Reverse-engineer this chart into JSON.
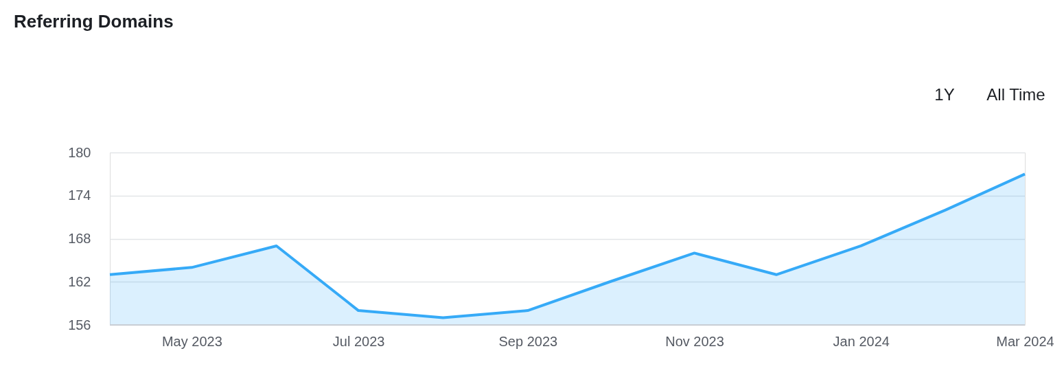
{
  "chart_data": {
    "type": "area",
    "title": "Referring Domains",
    "annotations": [
      "1Y",
      "All Time"
    ],
    "x": [
      "2023-04",
      "2023-05",
      "2023-06",
      "2023-07",
      "2023-08",
      "2023-09",
      "2023-10",
      "2023-11",
      "2023-12",
      "2024-01",
      "2024-02",
      "2024-03"
    ],
    "series": [
      {
        "color": "#36aaf7",
        "values": [
          163,
          164,
          167,
          158,
          157,
          158,
          162,
          166,
          163,
          167,
          172,
          177
        ]
      }
    ],
    "xlim": [
      "2023-04",
      "2024-03"
    ],
    "xticks": [
      {
        "value": "2023-05",
        "label": "May 2023"
      },
      {
        "value": "2023-07",
        "label": "Jul 2023"
      },
      {
        "value": "2023-09",
        "label": "Sep 2023"
      },
      {
        "value": "2023-11",
        "label": "Nov 2023"
      },
      {
        "value": "2024-01",
        "label": "Jan 2024"
      },
      {
        "value": "2024-03",
        "label": "Mar 2024"
      }
    ],
    "ylim": [
      156,
      180
    ],
    "yticks": [
      156,
      162,
      168,
      174,
      180
    ],
    "grid": "y",
    "marker": "none",
    "line_style": "solid"
  }
}
